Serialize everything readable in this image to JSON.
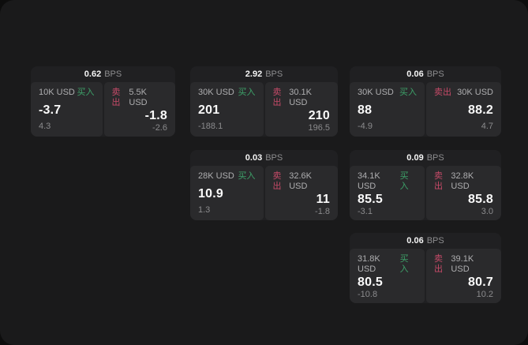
{
  "labels": {
    "buy": "买入",
    "sell": "卖出"
  },
  "units": {
    "bps": "BPS"
  },
  "colors": {
    "window_background": "#1a1a1b",
    "card_background": "#202022",
    "panel_background": "#2a2a2c",
    "buy_accent": "#3da169",
    "sell_accent": "#c64a68",
    "primary_text": "#fafafa",
    "secondary_text": "#8d8d8f"
  },
  "cards": [
    {
      "spread": "0.62",
      "buy": {
        "amount": "10K USD",
        "price": "-3.7",
        "delta": "4.3"
      },
      "sell": {
        "amount": "5.5K USD",
        "price": "-1.8",
        "delta": "-2.6"
      }
    },
    {
      "spread": "2.92",
      "buy": {
        "amount": "30K USD",
        "price": "201",
        "delta": "-188.1"
      },
      "sell": {
        "amount": "30.1K USD",
        "price": "210",
        "delta": "196.5"
      }
    },
    {
      "spread": "0.06",
      "buy": {
        "amount": "30K USD",
        "price": "88",
        "delta": "-4.9"
      },
      "sell": {
        "amount": "30K USD",
        "price": "88.2",
        "delta": "4.7"
      }
    },
    {
      "spread": "0.03",
      "buy": {
        "amount": "28K USD",
        "price": "10.9",
        "delta": "1.3"
      },
      "sell": {
        "amount": "32.6K USD",
        "price": "11",
        "delta": "-1.8"
      }
    },
    {
      "spread": "0.09",
      "buy": {
        "amount": "34.1K USD",
        "price": "85.5",
        "delta": "-3.1"
      },
      "sell": {
        "amount": "32.8K USD",
        "price": "85.8",
        "delta": "3.0"
      }
    },
    {
      "spread": "0.06",
      "buy": {
        "amount": "31.8K USD",
        "price": "80.5",
        "delta": "-10.8"
      },
      "sell": {
        "amount": "39.1K USD",
        "price": "80.7",
        "delta": "10.2"
      }
    }
  ]
}
